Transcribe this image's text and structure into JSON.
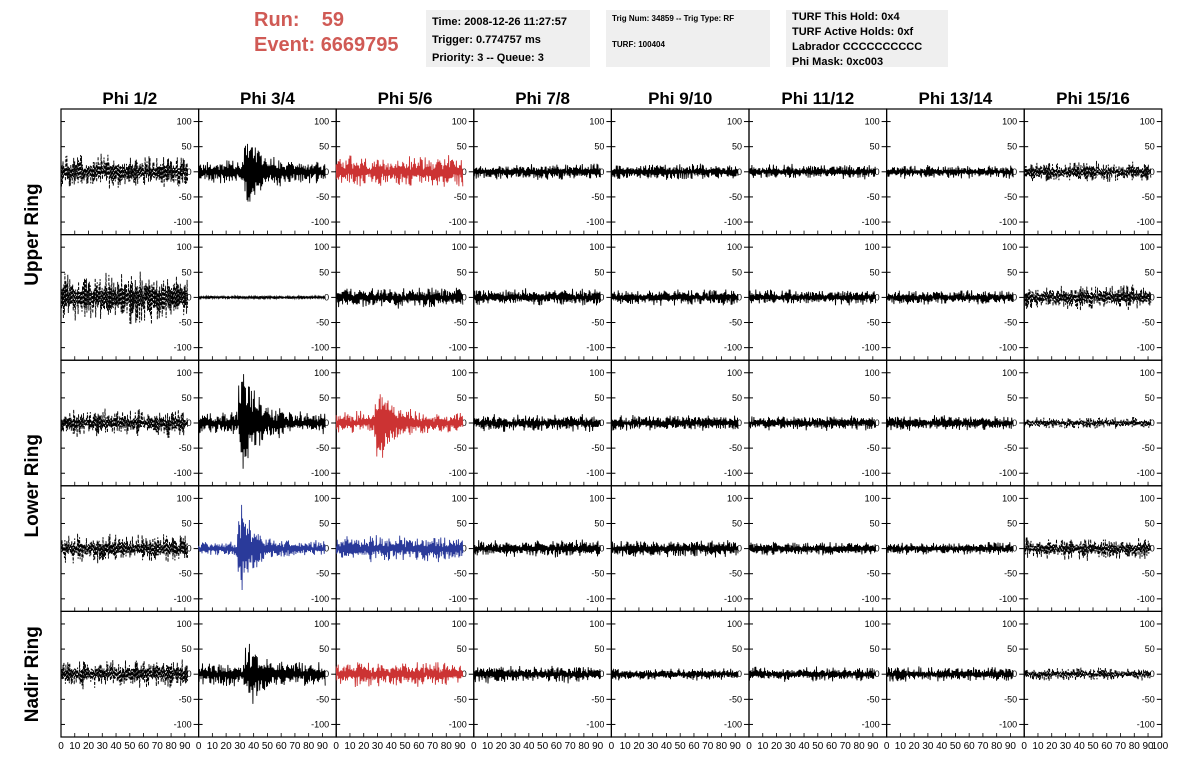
{
  "header": {
    "run_label": "Run:",
    "run_value": "59",
    "event_label": "Event:",
    "event_value": "6669795",
    "run_color": "#d05a55"
  },
  "info": {
    "time_line": "Time: 2008-12-26 11:27:57",
    "trigger_line": "Trigger: 0.774757 ms",
    "priority_line": "Priority: 3 -- Queue: 3",
    "trig_line": "Trig Num: 34859 -- Trig Type: RF",
    "turf_line": "TURF: 100404",
    "hold_line": "TURF This Hold: 0x4",
    "active_line": "TURF Active Holds: 0xf",
    "labrador_line": "Labrador CCCCCCCCCC",
    "mask_line": "Phi Mask: 0xc003"
  },
  "chart_data": {
    "type": "line",
    "columns": [
      "Phi 1/2",
      "Phi 3/4",
      "Phi 5/6",
      "Phi 7/8",
      "Phi 9/10",
      "Phi 11/12",
      "Phi 13/14",
      "Phi 15/16"
    ],
    "ring_labels": [
      {
        "text": "Upper Ring",
        "rows": [
          0,
          1
        ]
      },
      {
        "text": "Lower Ring",
        "rows": [
          2,
          3
        ]
      },
      {
        "text": "Nadir Ring",
        "rows": [
          4,
          4
        ]
      }
    ],
    "x_range": [
      0,
      100
    ],
    "y_range": [
      -125,
      125
    ],
    "y_ticks": [
      -100,
      -50,
      0,
      50,
      100
    ],
    "y_tick_labels": [
      "-100",
      "-50",
      "0",
      "50",
      "100"
    ],
    "x_ticks": [
      0,
      10,
      20,
      30,
      40,
      50,
      60,
      70,
      80,
      90
    ],
    "x_tick_labels": [
      "0",
      "10",
      "20",
      "30",
      "40",
      "50",
      "60",
      "70",
      "80",
      "90"
    ],
    "x_end_label": "100",
    "trace_x_range": [
      0,
      92
    ],
    "styles": {
      "dashed": {
        "color": "#000000",
        "dash": "3,1.5"
      },
      "solid": {
        "color": "#000000",
        "dash": ""
      },
      "red": {
        "color": "#cc3333",
        "dash": ""
      },
      "blue": {
        "color": "#2a3a9a",
        "dash": ""
      }
    },
    "traces": [
      [
        {
          "style": "dashed",
          "amp": 30,
          "burst": null,
          "seed": 1
        },
        {
          "style": "solid",
          "amp": 22,
          "burst": [
            37,
            70
          ],
          "seed": 2
        },
        {
          "style": "red",
          "amp": 28,
          "burst": null,
          "seed": 3
        },
        {
          "style": "solid",
          "amp": 14,
          "burst": null,
          "seed": 4
        },
        {
          "style": "solid",
          "amp": 14,
          "burst": null,
          "seed": 5
        },
        {
          "style": "solid",
          "amp": 13,
          "burst": null,
          "seed": 6
        },
        {
          "style": "solid",
          "amp": 12,
          "burst": null,
          "seed": 7
        },
        {
          "style": "dashed",
          "amp": 18,
          "burst": null,
          "seed": 8
        }
      ],
      [
        {
          "style": "dashed",
          "amp": 45,
          "burst": null,
          "seed": 9
        },
        {
          "style": "solid",
          "amp": 3,
          "burst": null,
          "seed": 10
        },
        {
          "style": "solid",
          "amp": 18,
          "burst": null,
          "seed": 11
        },
        {
          "style": "solid",
          "amp": 15,
          "burst": null,
          "seed": 12
        },
        {
          "style": "solid",
          "amp": 14,
          "burst": null,
          "seed": 13
        },
        {
          "style": "solid",
          "amp": 13,
          "burst": null,
          "seed": 14
        },
        {
          "style": "solid",
          "amp": 13,
          "burst": null,
          "seed": 15
        },
        {
          "style": "dashed",
          "amp": 22,
          "burst": null,
          "seed": 16
        }
      ],
      [
        {
          "style": "dashed",
          "amp": 25,
          "burst": null,
          "seed": 17
        },
        {
          "style": "solid",
          "amp": 20,
          "burst": [
            33,
            110
          ],
          "seed": 18
        },
        {
          "style": "red",
          "amp": 20,
          "burst": [
            32,
            85
          ],
          "seed": 19
        },
        {
          "style": "solid",
          "amp": 15,
          "burst": null,
          "seed": 20
        },
        {
          "style": "solid",
          "amp": 14,
          "burst": null,
          "seed": 21
        },
        {
          "style": "solid",
          "amp": 13,
          "burst": null,
          "seed": 22
        },
        {
          "style": "solid",
          "amp": 14,
          "burst": null,
          "seed": 23
        },
        {
          "style": "dashed",
          "amp": 10,
          "burst": null,
          "seed": 24
        }
      ],
      [
        {
          "style": "dashed",
          "amp": 25,
          "burst": null,
          "seed": 25
        },
        {
          "style": "blue",
          "amp": 14,
          "burst": [
            32,
            95
          ],
          "seed": 26
        },
        {
          "style": "blue",
          "amp": 22,
          "burst": null,
          "seed": 27
        },
        {
          "style": "solid",
          "amp": 15,
          "burst": null,
          "seed": 28
        },
        {
          "style": "solid",
          "amp": 15,
          "burst": null,
          "seed": 29
        },
        {
          "style": "solid",
          "amp": 12,
          "burst": null,
          "seed": 30
        },
        {
          "style": "solid",
          "amp": 11,
          "burst": null,
          "seed": 31
        },
        {
          "style": "dashed",
          "amp": 20,
          "burst": null,
          "seed": 32
        }
      ],
      [
        {
          "style": "dashed",
          "amp": 25,
          "burst": null,
          "seed": 33
        },
        {
          "style": "solid",
          "amp": 22,
          "burst": [
            38,
            55
          ],
          "seed": 34
        },
        {
          "style": "red",
          "amp": 22,
          "burst": null,
          "seed": 35
        },
        {
          "style": "solid",
          "amp": 15,
          "burst": null,
          "seed": 36
        },
        {
          "style": "solid",
          "amp": 11,
          "burst": null,
          "seed": 37
        },
        {
          "style": "solid",
          "amp": 13,
          "burst": null,
          "seed": 38
        },
        {
          "style": "solid",
          "amp": 13,
          "burst": null,
          "seed": 39
        },
        {
          "style": "dashed",
          "amp": 12,
          "burst": null,
          "seed": 40
        }
      ]
    ]
  }
}
